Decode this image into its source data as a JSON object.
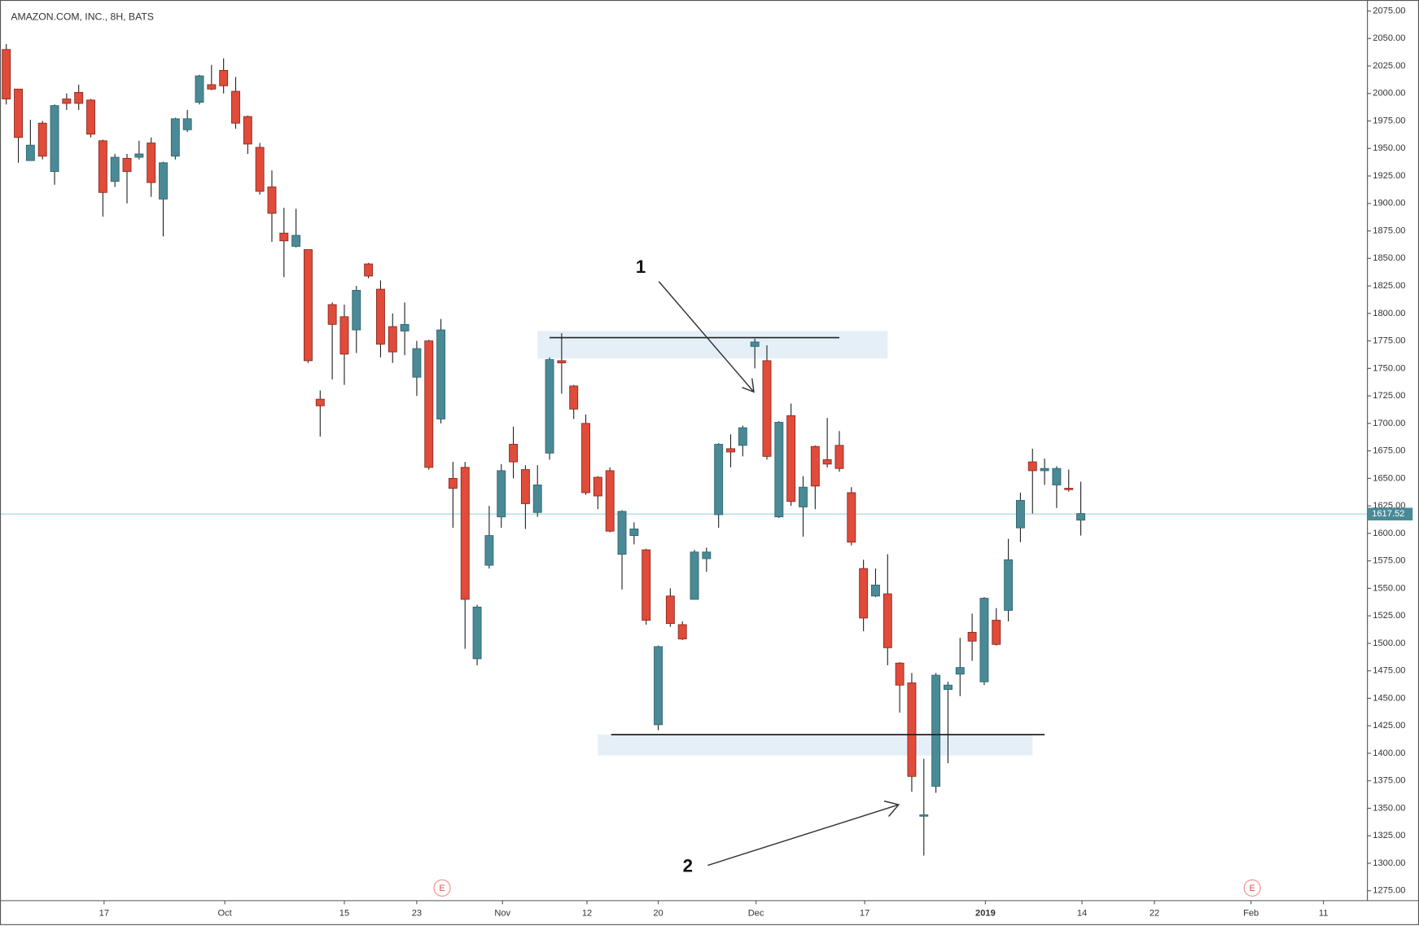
{
  "chart_data": {
    "type": "candlestick",
    "title": "AMAZON.COM, INC., 8H, BATS",
    "x": [
      0,
      1,
      2,
      3,
      4,
      5,
      6,
      7,
      8,
      9,
      10,
      11,
      12,
      13,
      14,
      15,
      16,
      17,
      18,
      19,
      20,
      21,
      22,
      23,
      24,
      25,
      26,
      27,
      28,
      29,
      30,
      31,
      32,
      33,
      34,
      35,
      36,
      37,
      38,
      39,
      40,
      41,
      42,
      43,
      44,
      45,
      46,
      47,
      48,
      49,
      50,
      51,
      52,
      53,
      54,
      55,
      56,
      57,
      58,
      59,
      60,
      61,
      62,
      63,
      64,
      65,
      66,
      67,
      68,
      69,
      70,
      71,
      72,
      73,
      74,
      75,
      76,
      77,
      78,
      79,
      80,
      81,
      82,
      83,
      84,
      85,
      86,
      87,
      88,
      89
    ],
    "open": [
      2040,
      2004,
      1939,
      1973,
      1929,
      1995,
      2001,
      1994,
      1957,
      1920,
      1941,
      1942,
      1955,
      1904,
      1943,
      1967,
      1992,
      2008,
      2021,
      2002,
      1979,
      1951,
      1915,
      1873,
      1861,
      1858,
      1722,
      1808,
      1797,
      1785,
      1845,
      1822,
      1788,
      1784,
      1742,
      1775,
      1704,
      1650,
      1660,
      1486,
      1571,
      1615,
      1681,
      1658,
      1619,
      1673,
      1757,
      1734,
      1700,
      1651,
      1657,
      1581,
      1598,
      1585,
      1426,
      1543,
      1517,
      1540,
      1577,
      1617,
      1677,
      1680,
      1770,
      1757,
      1615,
      1707,
      1624,
      1679,
      1667,
      1680,
      1637,
      1568,
      1543,
      1545,
      1482,
      1464,
      1344,
      1370,
      1458,
      1472,
      1510,
      1465,
      1521,
      1530,
      1605,
      1665,
      1657,
      1644,
      1641,
      1612
    ],
    "high": [
      2045,
      2004,
      1976,
      1975,
      1990,
      2000,
      2008,
      1995,
      1958,
      1945,
      1945,
      1957,
      1960,
      1938,
      1978,
      1985,
      2017,
      2026,
      2032,
      2015,
      1980,
      1955,
      1930,
      1896,
      1895,
      1858,
      1730,
      1810,
      1808,
      1825,
      1846,
      1830,
      1800,
      1810,
      1775,
      1776,
      1795,
      1665,
      1665,
      1535,
      1625,
      1663,
      1697,
      1662,
      1662,
      1760,
      1782,
      1735,
      1708,
      1652,
      1660,
      1621,
      1610,
      1586,
      1498,
      1550,
      1520,
      1585,
      1587,
      1682,
      1690,
      1698,
      1777,
      1771,
      1702,
      1718,
      1652,
      1680,
      1705,
      1693,
      1642,
      1576,
      1568,
      1581,
      1483,
      1473,
      1395,
      1473,
      1465,
      1505,
      1527,
      1542,
      1532,
      1595,
      1637,
      1677,
      1668,
      1661,
      1658,
      1647
    ],
    "low": [
      1990,
      1937,
      1939,
      1940,
      1917,
      1985,
      1985,
      1960,
      1888,
      1915,
      1900,
      1940,
      1906,
      1870,
      1940,
      1965,
      1990,
      2003,
      2000,
      1968,
      1945,
      1908,
      1865,
      1833,
      1860,
      1755,
      1688,
      1740,
      1735,
      1764,
      1832,
      1760,
      1755,
      1762,
      1725,
      1658,
      1700,
      1605,
      1495,
      1480,
      1568,
      1605,
      1650,
      1604,
      1615,
      1667,
      1727,
      1704,
      1635,
      1622,
      1601,
      1549,
      1590,
      1517,
      1421,
      1515,
      1503,
      1540,
      1565,
      1605,
      1660,
      1670,
      1750,
      1667,
      1614,
      1625,
      1597,
      1622,
      1660,
      1656,
      1589,
      1511,
      1542,
      1480,
      1437,
      1365,
      1307,
      1364,
      1391,
      1452,
      1484,
      1462,
      1498,
      1520,
      1592,
      1618,
      1644,
      1623,
      1638,
      1598
    ],
    "close": [
      1995,
      1960,
      1953,
      1943,
      1989,
      1991,
      1991,
      1963,
      1910,
      1942,
      1929,
      1945,
      1919,
      1937,
      1977,
      1977,
      2016,
      2004,
      2007,
      1973,
      1954,
      1911,
      1891,
      1866,
      1871,
      1757,
      1716,
      1790,
      1763,
      1821,
      1834,
      1772,
      1765,
      1790,
      1768,
      1660,
      1785,
      1641,
      1540,
      1533,
      1598,
      1657,
      1665,
      1627,
      1644,
      1758,
      1755,
      1713,
      1637,
      1634,
      1602,
      1620,
      1604,
      1521,
      1497,
      1518,
      1504,
      1583,
      1583,
      1681,
      1674,
      1696,
      1774,
      1670,
      1701,
      1629,
      1642,
      1643,
      1663,
      1659,
      1592,
      1523,
      1553,
      1496,
      1462,
      1379,
      1344,
      1471,
      1462,
      1478,
      1502,
      1541,
      1499,
      1576,
      1630,
      1657,
      1659,
      1659,
      1640,
      1618
    ],
    "up_color": "#4a8a96",
    "down_color": "#e04b3a",
    "last_price": 1617.52,
    "xlim": [
      -0.52,
      112.74
    ],
    "ylim": [
      1266,
      2085
    ],
    "xticks": [
      {
        "value": 8.1,
        "label": "17"
      },
      {
        "value": 18.1,
        "label": "Oct"
      },
      {
        "value": 28.0,
        "label": "15"
      },
      {
        "value": 34.0,
        "label": "23"
      },
      {
        "value": 41.1,
        "label": "Nov"
      },
      {
        "value": 48.1,
        "label": "12"
      },
      {
        "value": 54.0,
        "label": "20"
      },
      {
        "value": 62.1,
        "label": "Dec"
      },
      {
        "value": 71.1,
        "label": "17"
      },
      {
        "value": 81.1,
        "label": "2019"
      },
      {
        "value": 89.1,
        "label": "14"
      },
      {
        "value": 95.1,
        "label": "22"
      },
      {
        "value": 103.1,
        "label": "Feb"
      },
      {
        "value": 109.1,
        "label": "11"
      }
    ],
    "yticks": [
      {
        "value": 1275,
        "label": "1275.00"
      },
      {
        "value": 1300,
        "label": "1300.00"
      },
      {
        "value": 1325,
        "label": "1325.00"
      },
      {
        "value": 1350,
        "label": "1350.00"
      },
      {
        "value": 1375,
        "label": "1375.00"
      },
      {
        "value": 1400,
        "label": "1400.00"
      },
      {
        "value": 1425,
        "label": "1425.00"
      },
      {
        "value": 1450,
        "label": "1450.00"
      },
      {
        "value": 1475,
        "label": "1475.00"
      },
      {
        "value": 1500,
        "label": "1500.00"
      },
      {
        "value": 1525,
        "label": "1525.00"
      },
      {
        "value": 1550,
        "label": "1550.00"
      },
      {
        "value": 1575,
        "label": "1575.00"
      },
      {
        "value": 1600,
        "label": "1600.00"
      },
      {
        "value": 1625,
        "label": "1625.00"
      },
      {
        "value": 1650,
        "label": "1650.00"
      },
      {
        "value": 1675,
        "label": "1675.00"
      },
      {
        "value": 1700,
        "label": "1700.00"
      },
      {
        "value": 1725,
        "label": "1725.00"
      },
      {
        "value": 1750,
        "label": "1750.00"
      },
      {
        "value": 1775,
        "label": "1775.00"
      },
      {
        "value": 1800,
        "label": "1800.00"
      },
      {
        "value": 1825,
        "label": "1825.00"
      },
      {
        "value": 1850,
        "label": "1850.00"
      },
      {
        "value": 1875,
        "label": "1875.00"
      },
      {
        "value": 1900,
        "label": "1900.00"
      },
      {
        "value": 1925,
        "label": "1925.00"
      },
      {
        "value": 1950,
        "label": "1950.00"
      },
      {
        "value": 1975,
        "label": "1975.00"
      },
      {
        "value": 2000,
        "label": "2000.00"
      },
      {
        "value": 2025,
        "label": "2025.00"
      },
      {
        "value": 2050,
        "label": "2050.00"
      },
      {
        "value": 2075,
        "label": "2075.00"
      }
    ],
    "zones": [
      {
        "from": 1759,
        "to": 1784,
        "x0": 44.0,
        "x1": 73.0
      },
      {
        "from": 1398,
        "to": 1417,
        "x0": 49.0,
        "x1": 85.0
      }
    ],
    "levels": [
      {
        "price": 1778,
        "x0": 45.0,
        "x1": 69.0
      },
      {
        "price": 1417,
        "x0": 50.1,
        "x1": 86.0
      }
    ],
    "events": [
      {
        "x": 36.1,
        "label": "E"
      },
      {
        "x": 103.2,
        "label": "E"
      }
    ],
    "annotations": [
      "1",
      "2"
    ]
  }
}
